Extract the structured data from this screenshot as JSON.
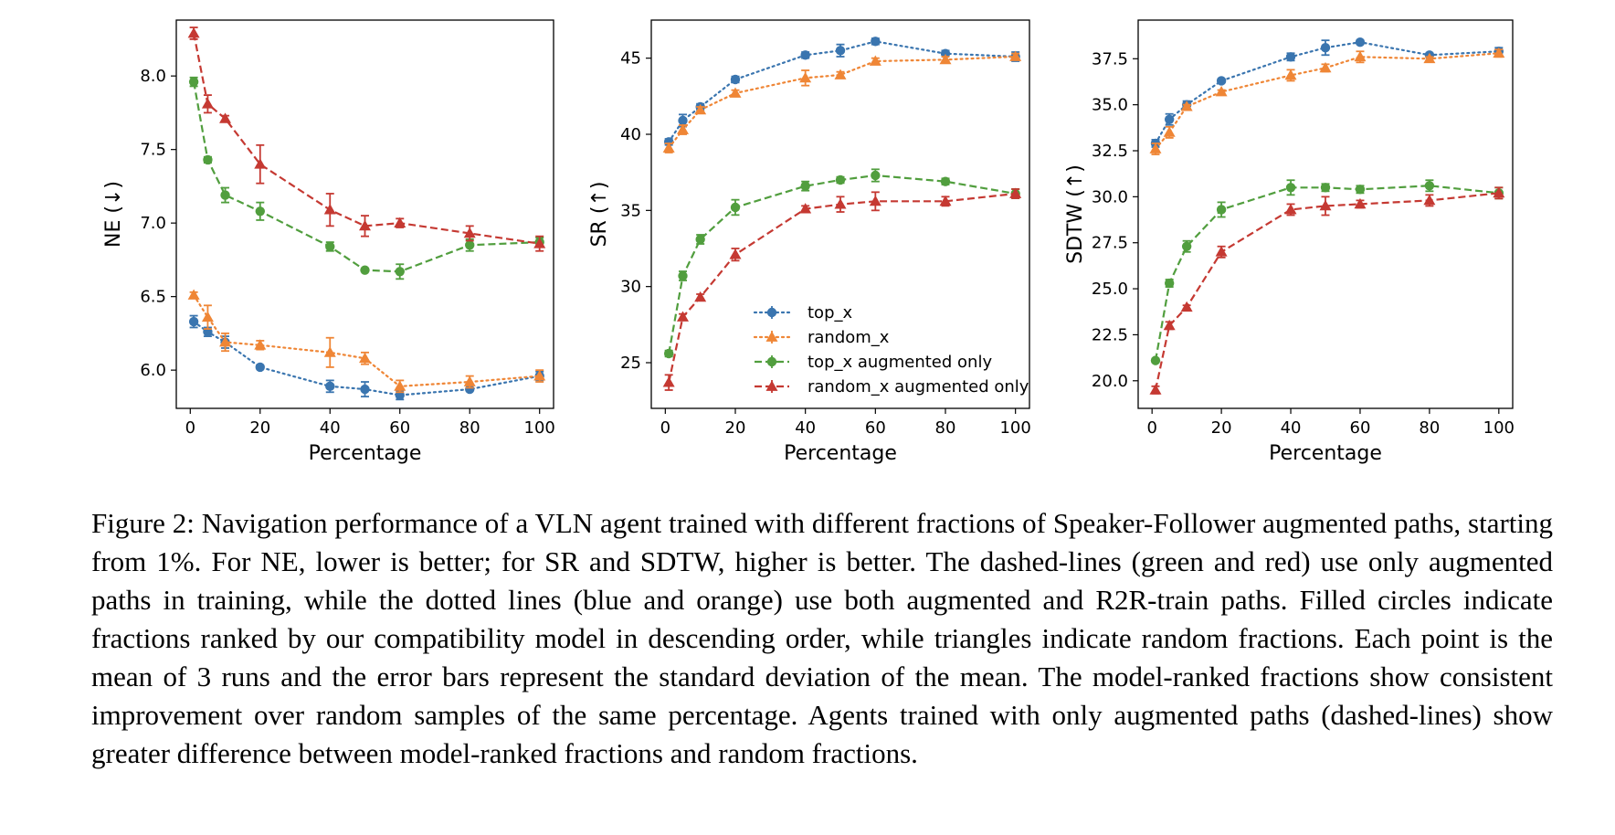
{
  "colors": {
    "blue": "#3a75af",
    "orange": "#ef8636",
    "green": "#519e3e",
    "red": "#c53932"
  },
  "chart_data": [
    {
      "type": "line",
      "xlabel": "Percentage",
      "ylabel": "NE (↓)",
      "xlim": [
        -4,
        104
      ],
      "ylim": [
        5.74,
        8.38
      ],
      "xticks": [
        0,
        20,
        40,
        60,
        80,
        100
      ],
      "yticks": [
        6.0,
        6.5,
        7.0,
        7.5,
        8.0
      ],
      "ytick_format": 1,
      "x": [
        1,
        5,
        10,
        20,
        40,
        50,
        60,
        80,
        100
      ],
      "series": [
        {
          "name": "top_x",
          "color": "#3a75af",
          "style": "dotted",
          "marker": "circle",
          "values": [
            6.33,
            6.26,
            6.19,
            6.02,
            5.89,
            5.87,
            5.83,
            5.87,
            5.96
          ],
          "errors": [
            0.04,
            0.03,
            0.04,
            0.01,
            0.04,
            0.05,
            0.03,
            0.01,
            0.03
          ]
        },
        {
          "name": "random_x",
          "color": "#ef8636",
          "style": "dotted",
          "marker": "triangle",
          "values": [
            6.51,
            6.36,
            6.19,
            6.17,
            6.12,
            6.08,
            5.89,
            5.92,
            5.96
          ],
          "errors": [
            0.02,
            0.08,
            0.06,
            0.03,
            0.1,
            0.04,
            0.04,
            0.04,
            0.04
          ]
        },
        {
          "name": "top_x augmented only",
          "color": "#519e3e",
          "style": "dashed",
          "marker": "circle",
          "values": [
            7.96,
            7.43,
            7.19,
            7.08,
            6.84,
            6.68,
            6.67,
            6.85,
            6.87
          ],
          "errors": [
            0.03,
            0.02,
            0.05,
            0.06,
            0.03,
            0.01,
            0.05,
            0.04,
            0.03
          ]
        },
        {
          "name": "random_x augmented only",
          "color": "#c53932",
          "style": "dashed",
          "marker": "triangle",
          "values": [
            8.29,
            7.81,
            7.71,
            7.4,
            7.09,
            6.98,
            7.0,
            6.93,
            6.86
          ],
          "errors": [
            0.04,
            0.06,
            0.02,
            0.13,
            0.11,
            0.07,
            0.03,
            0.05,
            0.05
          ]
        }
      ]
    },
    {
      "type": "line",
      "xlabel": "Percentage",
      "ylabel": "SR (↑)",
      "xlim": [
        -4,
        104
      ],
      "ylim": [
        22,
        47.5
      ],
      "xticks": [
        0,
        20,
        40,
        60,
        80,
        100
      ],
      "yticks": [
        25,
        30,
        35,
        40,
        45
      ],
      "ytick_format": 0,
      "legend": "lower-right",
      "x": [
        1,
        5,
        10,
        20,
        40,
        50,
        60,
        80,
        100
      ],
      "series": [
        {
          "name": "top_x",
          "color": "#3a75af",
          "style": "dotted",
          "marker": "circle",
          "values": [
            39.5,
            40.9,
            41.8,
            43.6,
            45.2,
            45.5,
            46.1,
            45.3,
            45.1
          ],
          "errors": [
            0.2,
            0.4,
            0.2,
            0.2,
            0.2,
            0.4,
            0.2,
            0.2,
            0.3
          ]
        },
        {
          "name": "random_x",
          "color": "#ef8636",
          "style": "dotted",
          "marker": "triangle",
          "values": [
            39.1,
            40.3,
            41.6,
            42.7,
            43.7,
            43.9,
            44.8,
            44.9,
            45.1
          ],
          "errors": [
            0.3,
            0.3,
            0.2,
            0.2,
            0.5,
            0.2,
            0.2,
            0.2,
            0.2
          ]
        },
        {
          "name": "top_x augmented only",
          "color": "#519e3e",
          "style": "dashed",
          "marker": "circle",
          "values": [
            25.6,
            30.7,
            33.1,
            35.2,
            36.6,
            37.0,
            37.3,
            36.9,
            36.1
          ],
          "errors": [
            0.2,
            0.3,
            0.3,
            0.5,
            0.3,
            0.2,
            0.4,
            0.2,
            0.3
          ]
        },
        {
          "name": "random_x augmented only",
          "color": "#c53932",
          "style": "dashed",
          "marker": "triangle",
          "values": [
            23.7,
            28.0,
            29.3,
            32.1,
            35.1,
            35.4,
            35.6,
            35.6,
            36.1
          ],
          "errors": [
            0.5,
            0.2,
            0.2,
            0.4,
            0.2,
            0.5,
            0.6,
            0.3,
            0.3
          ]
        }
      ]
    },
    {
      "type": "line",
      "xlabel": "Percentage",
      "ylabel": "SDTW (↑)",
      "xlim": [
        -4,
        104
      ],
      "ylim": [
        18.5,
        39.6
      ],
      "xticks": [
        0,
        20,
        40,
        60,
        80,
        100
      ],
      "yticks": [
        20.0,
        22.5,
        25.0,
        27.5,
        30.0,
        32.5,
        35.0,
        37.5
      ],
      "ytick_format": 1,
      "x": [
        1,
        5,
        10,
        20,
        40,
        50,
        60,
        80,
        100
      ],
      "series": [
        {
          "name": "top_x",
          "color": "#3a75af",
          "style": "dotted",
          "marker": "circle",
          "values": [
            32.9,
            34.2,
            35.0,
            36.3,
            37.6,
            38.1,
            38.4,
            37.7,
            37.9
          ],
          "errors": [
            0.2,
            0.3,
            0.2,
            0.1,
            0.2,
            0.4,
            0.1,
            0.1,
            0.2
          ]
        },
        {
          "name": "random_x",
          "color": "#ef8636",
          "style": "dotted",
          "marker": "triangle",
          "values": [
            32.6,
            33.5,
            34.9,
            35.7,
            36.6,
            37.0,
            37.6,
            37.5,
            37.8
          ],
          "errors": [
            0.3,
            0.3,
            0.1,
            0.1,
            0.3,
            0.2,
            0.3,
            0.1,
            0.2
          ]
        },
        {
          "name": "top_x augmented only",
          "color": "#519e3e",
          "style": "dashed",
          "marker": "circle",
          "values": [
            21.1,
            25.3,
            27.3,
            29.3,
            30.5,
            30.5,
            30.4,
            30.6,
            30.2
          ],
          "errors": [
            0.1,
            0.2,
            0.3,
            0.4,
            0.4,
            0.2,
            0.2,
            0.3,
            0.3
          ]
        },
        {
          "name": "random_x augmented only",
          "color": "#c53932",
          "style": "dashed",
          "marker": "triangle",
          "values": [
            19.5,
            23.0,
            24.0,
            27.0,
            29.3,
            29.5,
            29.6,
            29.8,
            30.2
          ],
          "errors": [
            0.2,
            0.2,
            0.1,
            0.3,
            0.3,
            0.5,
            0.2,
            0.3,
            0.3
          ]
        }
      ]
    }
  ],
  "caption": "Figure 2: Navigation performance of a VLN agent trained with different fractions of Speaker-Follower augmented paths, starting from 1%. For NE, lower is better; for SR and SDTW, higher is better. The dashed-lines (green and red) use only augmented paths in training, while the dotted lines (blue and orange) use both augmented and R2R-train paths. Filled circles indicate fractions ranked by our compatibility model in descending order, while triangles indicate random fractions. Each point is the mean of 3 runs and the error bars represent the standard deviation of the mean. The model-ranked fractions show consistent improvement over random samples of the same percentage. Agents trained with only augmented paths (dashed-lines) show greater difference between model-ranked fractions and random fractions."
}
